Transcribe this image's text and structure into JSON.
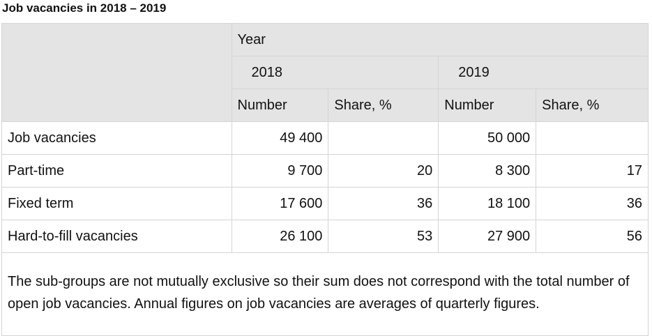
{
  "title": "Job vacancies in 2018 – 2019",
  "header": {
    "group": "Year",
    "years": [
      "2018",
      "2019"
    ],
    "subcols": [
      "Number",
      "Share, %",
      "Number",
      "Share, %"
    ]
  },
  "rows": [
    {
      "label": "Job vacancies",
      "n2018": "49 400",
      "s2018": "",
      "n2019": "50 000",
      "s2019": ""
    },
    {
      "label": "Part-time",
      "n2018": "9 700",
      "s2018": "20",
      "n2019": "8 300",
      "s2019": "17"
    },
    {
      "label": "Fixed term",
      "n2018": "17 600",
      "s2018": "36",
      "n2019": "18 100",
      "s2019": "36"
    },
    {
      "label": "Hard-to-fill vacancies",
      "n2018": "26 100",
      "s2018": "53",
      "n2019": "27 900",
      "s2019": "56"
    }
  ],
  "note": "The sub-groups are not mutually exclusive so their sum does not correspond with the total number of open job vacancies. Annual figures on job vacancies are averages of quarterly figures.",
  "colors": {
    "header_bg": "#e4e4e4",
    "border": "#d4d4d4"
  }
}
